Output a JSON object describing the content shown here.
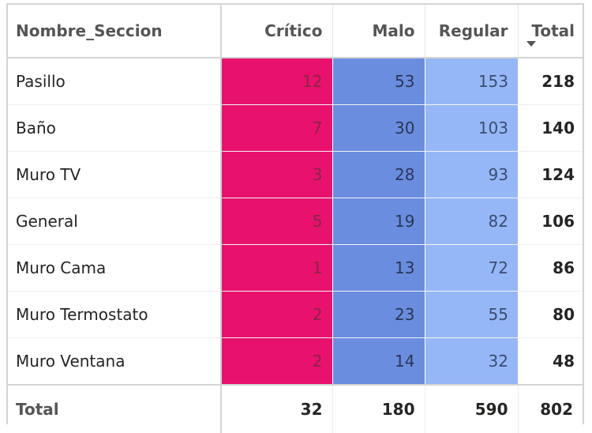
{
  "table": {
    "headers": {
      "name": "Nombre_Seccion",
      "critico": "Crítico",
      "malo": "Malo",
      "regular": "Regular",
      "total": "Total"
    },
    "sort_icon": "sort-descending-icon",
    "rows": [
      {
        "name": "Pasillo",
        "critico": "12",
        "malo": "53",
        "regular": "153",
        "total": "218"
      },
      {
        "name": "Baño",
        "critico": "7",
        "malo": "30",
        "regular": "103",
        "total": "140"
      },
      {
        "name": "Muro TV",
        "critico": "3",
        "malo": "28",
        "regular": "93",
        "total": "124"
      },
      {
        "name": "General",
        "critico": "5",
        "malo": "19",
        "regular": "82",
        "total": "106"
      },
      {
        "name": "Muro Cama",
        "critico": "1",
        "malo": "13",
        "regular": "72",
        "total": "86"
      },
      {
        "name": "Muro Termostato",
        "critico": "2",
        "malo": "23",
        "regular": "55",
        "total": "80"
      },
      {
        "name": "Muro Ventana",
        "critico": "2",
        "malo": "14",
        "regular": "32",
        "total": "48"
      }
    ],
    "totals": {
      "name": "Total",
      "critico": "32",
      "malo": "180",
      "regular": "590",
      "total": "802"
    },
    "colors": {
      "critico": "#e8126e",
      "malo": "#6a8ddf",
      "regular": "#96b7f7"
    }
  }
}
